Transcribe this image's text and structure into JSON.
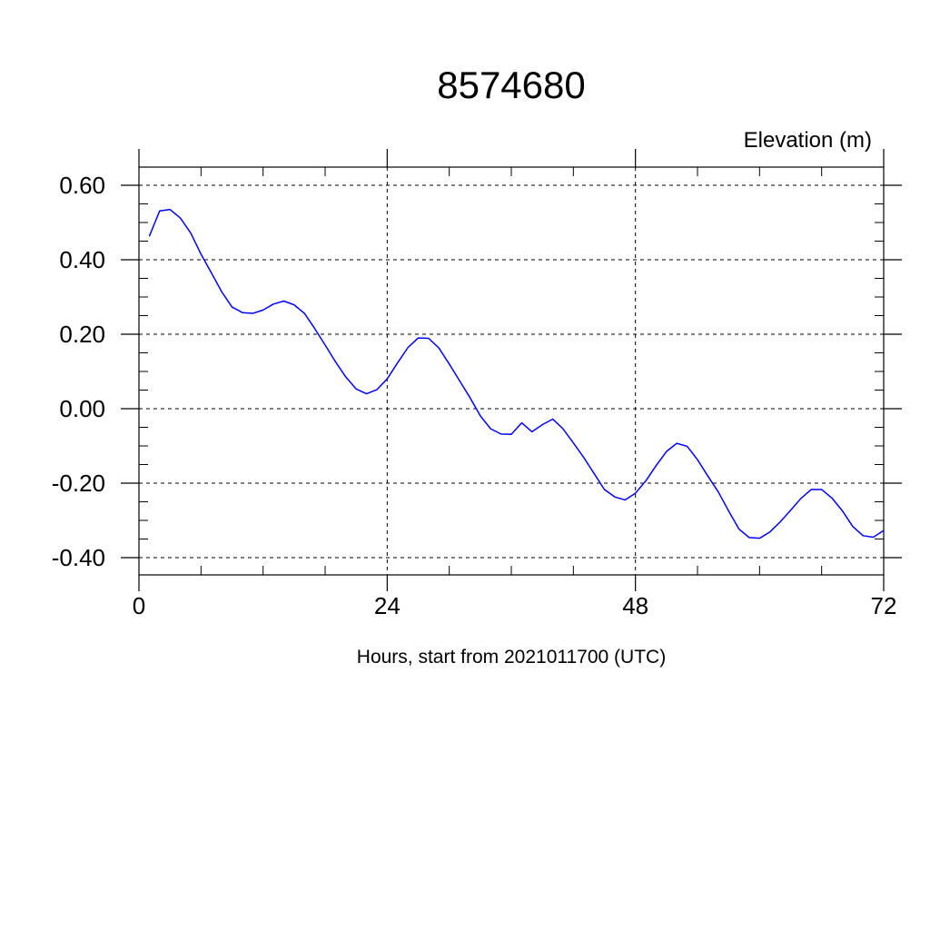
{
  "chart_data": {
    "type": "line",
    "title": "8574680",
    "ylabel": "Elevation (m)",
    "xlabel": "Hours, start from 2021011700 (UTC)",
    "xlim": [
      0,
      72
    ],
    "ylim": [
      -0.4,
      0.65
    ],
    "x_ticks": [
      0,
      24,
      48,
      72
    ],
    "x_tick_labels": [
      "0",
      "24",
      "48",
      "72"
    ],
    "y_ticks": [
      -0.4,
      -0.2,
      0.0,
      0.2,
      0.4,
      0.6
    ],
    "y_tick_labels": [
      "-0.40",
      "-0.20",
      "0.00",
      "0.20",
      "0.40",
      "0.60"
    ],
    "grid": true,
    "line_color": "#0000ff",
    "series": [
      {
        "x": [
          1,
          2,
          3,
          4,
          5,
          6,
          7,
          8,
          9,
          10,
          11,
          12,
          13,
          14,
          15,
          16,
          17,
          18,
          19,
          20,
          21,
          22,
          23,
          24,
          25,
          26,
          27,
          28,
          29,
          30,
          31,
          32,
          33,
          34,
          35,
          36,
          37,
          38,
          39,
          40,
          41,
          42,
          43,
          44,
          45,
          46,
          47,
          48,
          49,
          50,
          51,
          52,
          53,
          54,
          55,
          56,
          57,
          58,
          59,
          60,
          61,
          62,
          63,
          64,
          65,
          66,
          67,
          68,
          69,
          70,
          71,
          72
        ],
        "y": [
          0.463,
          0.531,
          0.535,
          0.512,
          0.472,
          0.415,
          0.365,
          0.314,
          0.273,
          0.258,
          0.256,
          0.265,
          0.281,
          0.289,
          0.279,
          0.256,
          0.215,
          0.171,
          0.126,
          0.085,
          0.053,
          0.04,
          0.051,
          0.08,
          0.123,
          0.164,
          0.19,
          0.189,
          0.163,
          0.12,
          0.075,
          0.03,
          -0.019,
          -0.054,
          -0.068,
          -0.069,
          -0.038,
          -0.062,
          -0.043,
          -0.028,
          -0.054,
          -0.092,
          -0.131,
          -0.174,
          -0.217,
          -0.237,
          -0.245,
          -0.227,
          -0.194,
          -0.153,
          -0.115,
          -0.093,
          -0.101,
          -0.137,
          -0.181,
          -0.223,
          -0.274,
          -0.323,
          -0.346,
          -0.348,
          -0.331,
          -0.304,
          -0.273,
          -0.241,
          -0.217,
          -0.217,
          -0.24,
          -0.274,
          -0.316,
          -0.341,
          -0.345,
          -0.327
        ]
      }
    ]
  }
}
